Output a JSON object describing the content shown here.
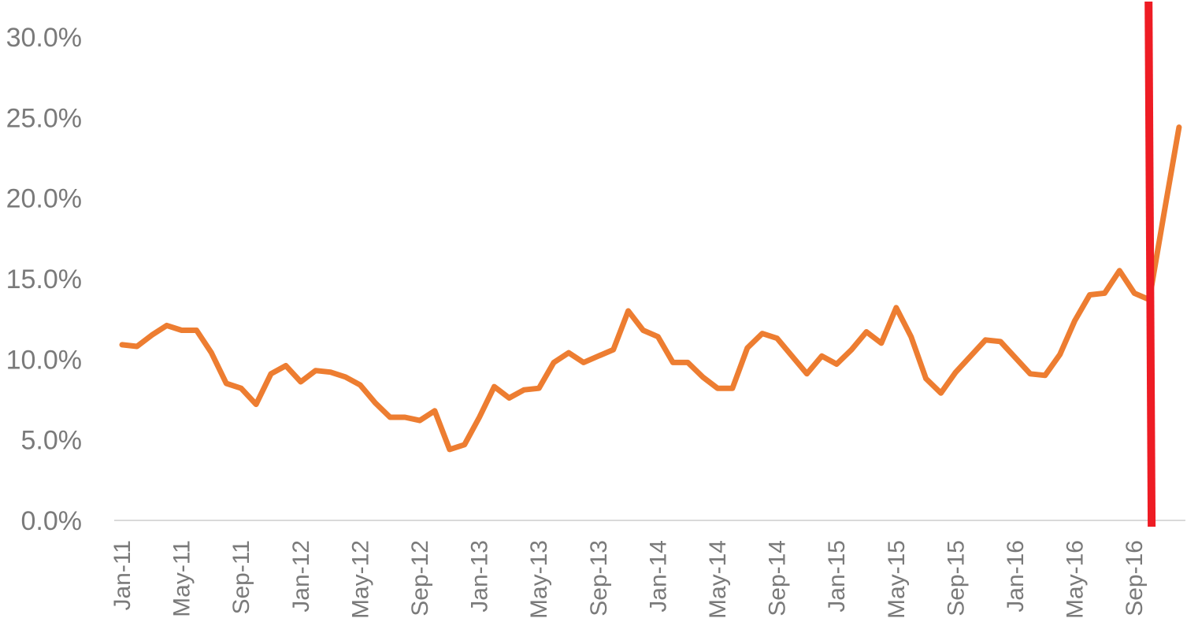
{
  "chart_data": {
    "type": "line",
    "title": "",
    "xlabel": "",
    "ylabel": "",
    "ylim": [
      0,
      30
    ],
    "y_ticks": [
      "0.0%",
      "5.0%",
      "10.0%",
      "15.0%",
      "20.0%",
      "25.0%",
      "30.0%"
    ],
    "y_tick_values": [
      0,
      5,
      10,
      15,
      20,
      25,
      30
    ],
    "x_tick_labels": [
      "Jan-11",
      "May-11",
      "Sep-11",
      "Jan-12",
      "May-12",
      "Sep-12",
      "Jan-13",
      "May-13",
      "Sep-13",
      "Jan-14",
      "May-14",
      "Sep-14",
      "Jan-15",
      "May-15",
      "Sep-15",
      "Jan-16",
      "May-16",
      "Sep-16"
    ],
    "x_tick_months": [
      "2011-01",
      "2011-05",
      "2011-09",
      "2012-01",
      "2012-05",
      "2012-09",
      "2013-01",
      "2013-05",
      "2013-09",
      "2014-01",
      "2014-05",
      "2014-09",
      "2015-01",
      "2015-05",
      "2015-09",
      "2016-01",
      "2016-05",
      "2016-09"
    ],
    "grid": false,
    "legend": "none",
    "series": [
      {
        "color": "#ed7d31",
        "x": [
          "2011-01",
          "2011-02",
          "2011-03",
          "2011-04",
          "2011-05",
          "2011-06",
          "2011-07",
          "2011-08",
          "2011-09",
          "2011-10",
          "2011-11",
          "2011-12",
          "2012-01",
          "2012-02",
          "2012-03",
          "2012-04",
          "2012-05",
          "2012-06",
          "2012-07",
          "2012-08",
          "2012-09",
          "2012-10",
          "2012-11",
          "2012-12",
          "2013-01",
          "2013-02",
          "2013-03",
          "2013-04",
          "2013-05",
          "2013-06",
          "2013-07",
          "2013-08",
          "2013-09",
          "2013-10",
          "2013-11",
          "2013-12",
          "2014-01",
          "2014-02",
          "2014-03",
          "2014-04",
          "2014-05",
          "2014-06",
          "2014-07",
          "2014-08",
          "2014-09",
          "2014-10",
          "2014-11",
          "2014-12",
          "2015-01",
          "2015-02",
          "2015-03",
          "2015-04",
          "2015-05",
          "2015-06",
          "2015-07",
          "2015-08",
          "2015-09",
          "2015-10",
          "2015-11",
          "2015-12",
          "2016-01",
          "2016-02",
          "2016-03",
          "2016-04",
          "2016-05",
          "2016-06",
          "2016-07",
          "2016-08",
          "2016-09",
          "2016-10",
          "2016-11",
          "2016-12"
        ],
        "values": [
          10.9,
          10.8,
          11.5,
          12.1,
          11.8,
          11.8,
          10.4,
          8.5,
          8.2,
          7.2,
          9.1,
          9.6,
          8.6,
          9.3,
          9.2,
          8.9,
          8.4,
          7.3,
          6.4,
          6.4,
          6.2,
          6.8,
          4.4,
          4.7,
          6.4,
          8.3,
          7.6,
          8.1,
          8.2,
          9.8,
          10.4,
          9.8,
          10.2,
          10.6,
          13.0,
          11.8,
          11.4,
          9.8,
          9.8,
          8.9,
          8.2,
          8.2,
          10.7,
          11.6,
          11.3,
          10.2,
          9.1,
          10.2,
          9.7,
          10.6,
          11.7,
          11.0,
          13.2,
          11.4,
          8.8,
          7.9,
          9.2,
          10.2,
          11.2,
          11.1,
          10.1,
          9.1,
          9.0,
          10.3,
          12.4,
          14.0,
          14.1,
          15.5,
          14.1,
          13.7,
          19.1,
          24.4
        ]
      }
    ],
    "annotations": [
      {
        "type": "vertical-line",
        "color": "#ee1c24",
        "x_start": "2016-09",
        "x_end": "2016-10"
      }
    ]
  }
}
